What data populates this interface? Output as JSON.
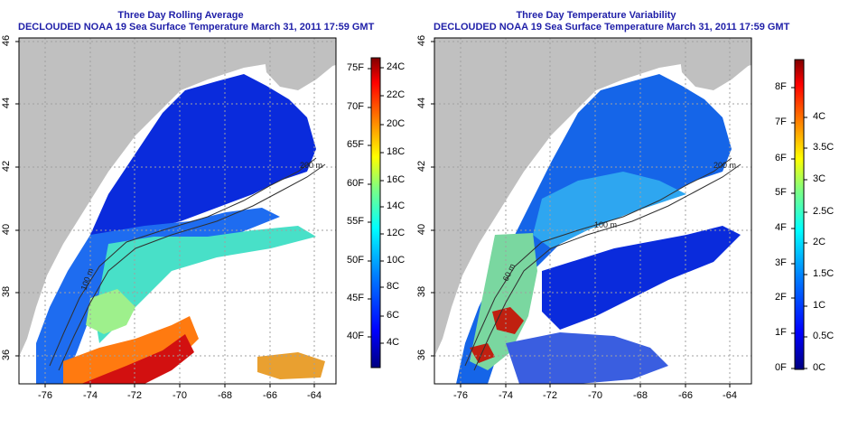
{
  "left_panel": {
    "title_line1": "Three Day Rolling Average",
    "title_line2": "DECLOUDED NOAA 19 Sea Surface Temperature March 31, 2011 17:59 GMT",
    "colorbar_f": [
      "75F",
      "70F",
      "65F",
      "60F",
      "55F",
      "50F",
      "45F",
      "40F"
    ],
    "colorbar_c": [
      "24C",
      "22C",
      "20C",
      "18C",
      "16C",
      "14C",
      "12C",
      "10C",
      "8C",
      "6C",
      "4C"
    ]
  },
  "right_panel": {
    "title_line1": "Three Day Temperature Variability",
    "title_line2": "DECLOUDED NOAA 19 Sea Surface Temperature March 31, 2011 17:59 GMT",
    "colorbar_f": [
      "8F",
      "7F",
      "6F",
      "5F",
      "4F",
      "3F",
      "2F",
      "1F",
      "0F"
    ],
    "colorbar_c": [
      "4C",
      "3.5C",
      "3C",
      "2.5C",
      "2C",
      "1.5C",
      "1C",
      "0.5C",
      "0C"
    ]
  },
  "axes": {
    "lat_labels": [
      "46",
      "44",
      "42",
      "40",
      "38",
      "36"
    ],
    "lon_labels": [
      "-76",
      "-74",
      "-72",
      "-70",
      "-68",
      "-66",
      "-64"
    ]
  },
  "contour_labels": {
    "left": [
      "100 m",
      "200 m"
    ],
    "right": [
      "100 m",
      "200 m",
      "60 m"
    ]
  },
  "colors": {
    "title": "#1f1fa8",
    "land": "#c0c0c0",
    "no_data": "#ffffff",
    "sst_scale": [
      "#000080",
      "#0000ff",
      "#0080ff",
      "#00ffff",
      "#80ff80",
      "#ffff00",
      "#ff8000",
      "#ff0000",
      "#800000"
    ]
  }
}
